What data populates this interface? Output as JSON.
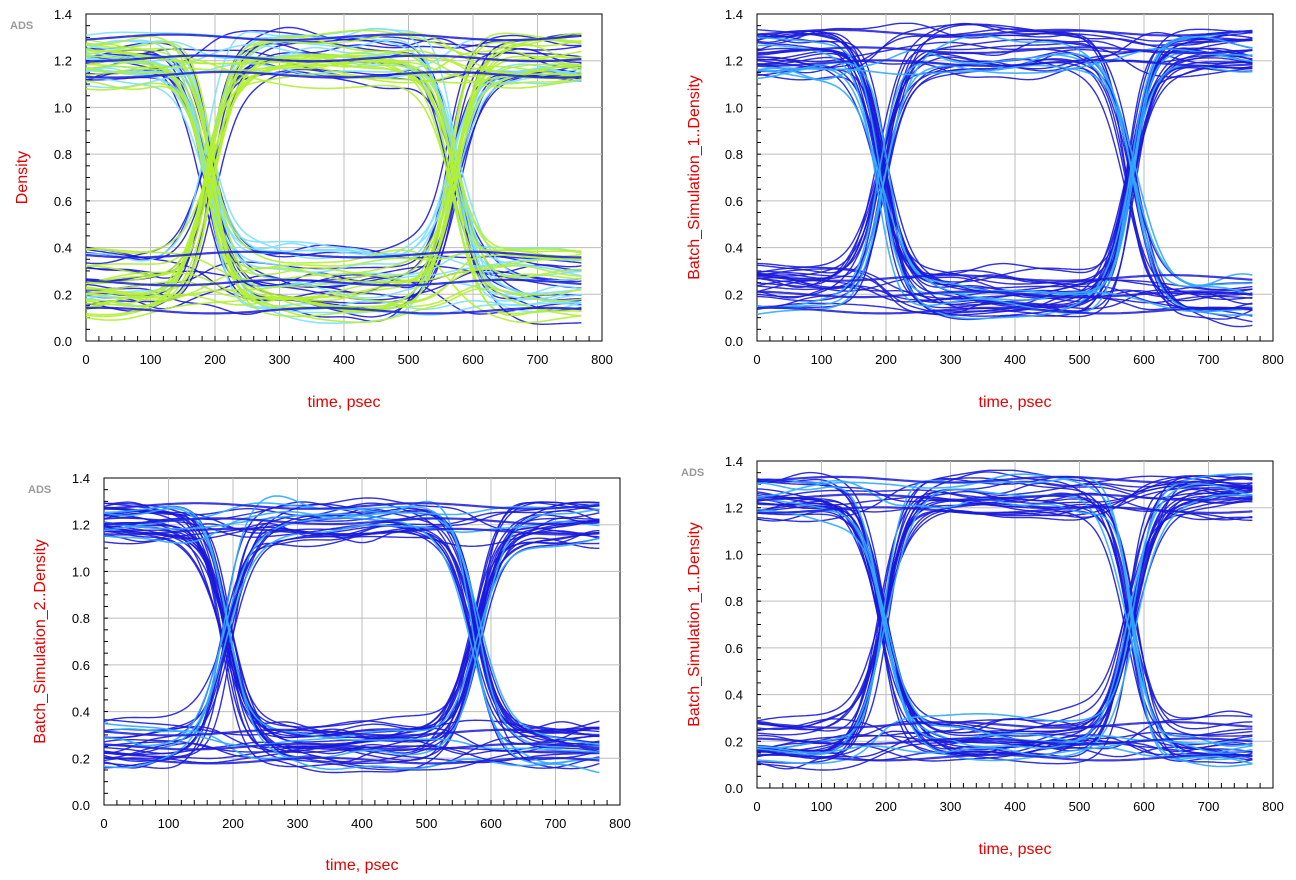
{
  "chart_data": [
    {
      "type": "eye-diagram",
      "ads_logo": "ADS",
      "xlabel": "time, psec",
      "ylabel": "Density",
      "xlim": [
        0,
        800
      ],
      "ylim": [
        0.0,
        1.4
      ],
      "xticks": [
        "0",
        "100",
        "200",
        "300",
        "400",
        "500",
        "600",
        "700",
        "800"
      ],
      "yticks": [
        "0.0",
        "0.2",
        "0.4",
        "0.6",
        "0.8",
        "1.0",
        "1.2",
        "1.4"
      ],
      "data_span_ps": [
        0,
        770
      ],
      "crossings_ps": [
        190,
        570
      ],
      "crossing_level": 0.7,
      "levels": {
        "low": [
          0.1,
          0.4
        ],
        "high": [
          1.1,
          1.32
        ]
      },
      "grid": true,
      "colors": [
        "#1a1adc",
        "#7fdfff",
        "#b2f032"
      ]
    },
    {
      "type": "eye-diagram",
      "ads_logo": "",
      "xlabel": "time, psec",
      "ylabel": "Batch_Simulation_1..Density",
      "xlim": [
        0,
        800
      ],
      "ylim": [
        0.0,
        1.4
      ],
      "xticks": [
        "0",
        "100",
        "200",
        "300",
        "400",
        "500",
        "600",
        "700",
        "800"
      ],
      "yticks": [
        "0.0",
        "0.2",
        "0.4",
        "0.6",
        "0.8",
        "1.0",
        "1.2",
        "1.4"
      ],
      "data_span_ps": [
        0,
        770
      ],
      "crossings_ps": [
        195,
        580
      ],
      "crossing_level": 0.65,
      "levels": {
        "low": [
          0.1,
          0.3
        ],
        "high": [
          1.15,
          1.34
        ]
      },
      "grid": true,
      "colors": [
        "#1a1adc",
        "#33aaff"
      ]
    },
    {
      "type": "eye-diagram",
      "ads_logo": "ADS",
      "xlabel": "time, psec",
      "ylabel": "Batch_Simulation_2..Density",
      "xlim": [
        0,
        800
      ],
      "ylim": [
        0.0,
        1.4
      ],
      "xticks": [
        "0",
        "100",
        "200",
        "300",
        "400",
        "500",
        "600",
        "700",
        "800"
      ],
      "yticks": [
        "0.0",
        "0.2",
        "0.4",
        "0.6",
        "0.8",
        "1.0",
        "1.2",
        "1.4"
      ],
      "data_span_ps": [
        0,
        770
      ],
      "crossings_ps": [
        190,
        575
      ],
      "crossing_level": 0.68,
      "levels": {
        "low": [
          0.16,
          0.34
        ],
        "high": [
          1.13,
          1.3
        ]
      },
      "grid": true,
      "colors": [
        "#1a1adc",
        "#33aaff"
      ]
    },
    {
      "type": "eye-diagram",
      "ads_logo": "ADS",
      "xlabel": "time, psec",
      "ylabel": "Batch_Simulation_1..Density",
      "xlim": [
        0,
        800
      ],
      "ylim": [
        0.0,
        1.4
      ],
      "xticks": [
        "0",
        "100",
        "200",
        "300",
        "400",
        "500",
        "600",
        "700",
        "800"
      ],
      "yticks": [
        "0.0",
        "0.2",
        "0.4",
        "0.6",
        "0.8",
        "1.0",
        "1.2",
        "1.4"
      ],
      "data_span_ps": [
        0,
        770
      ],
      "crossings_ps": [
        195,
        580
      ],
      "crossing_level": 0.65,
      "levels": {
        "low": [
          0.1,
          0.3
        ],
        "high": [
          1.15,
          1.34
        ]
      },
      "grid": true,
      "colors": [
        "#1a1adc",
        "#33aaff"
      ]
    }
  ]
}
